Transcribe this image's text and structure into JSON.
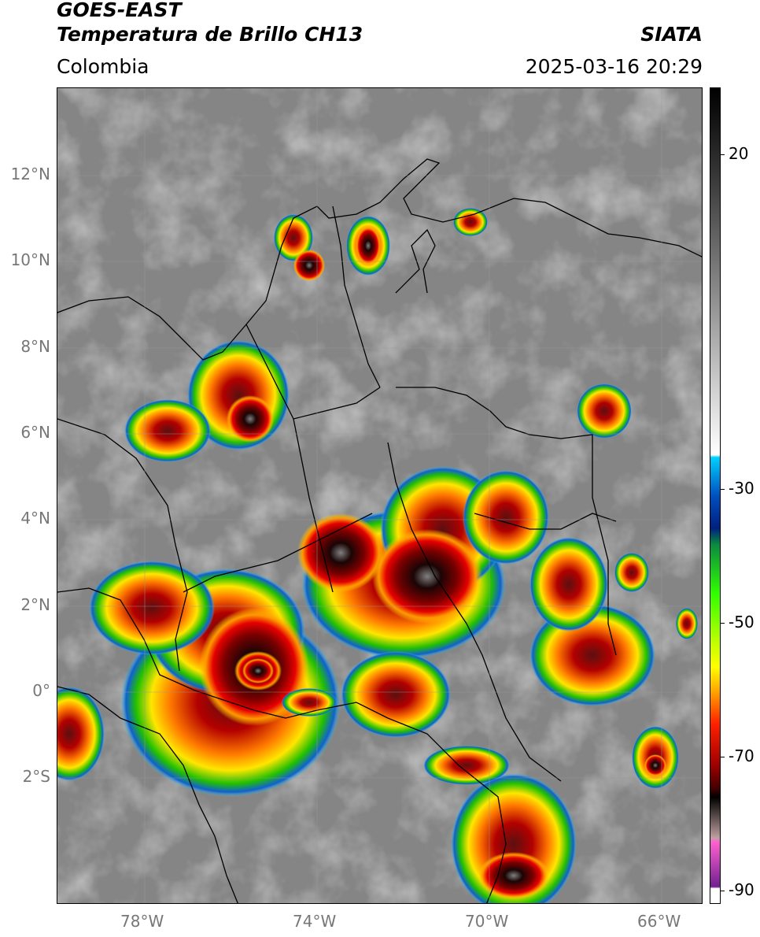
{
  "header": {
    "title_line1": "GOES-EAST",
    "title_line2": "Temperatura de Brillo CH13",
    "brand": "SIATA",
    "region": "Colombia",
    "timestamp": "2025-03-16 20:29"
  },
  "map": {
    "lat_labels": [
      "12°N",
      "10°N",
      "8°N",
      "6°N",
      "4°N",
      "2°N",
      "0°",
      "2°S"
    ],
    "lon_labels": [
      "78°W",
      "74°W",
      "70°W",
      "66°W"
    ],
    "lat_range": [
      -4.9,
      14.0
    ],
    "lon_range": [
      -80.0,
      -65.0
    ]
  },
  "colorbar": {
    "labels": [
      "20",
      "-30",
      "-50",
      "-70",
      "-90"
    ],
    "values": [
      20,
      -30,
      -50,
      -70,
      -90
    ],
    "range": [
      -92,
      30
    ]
  }
}
